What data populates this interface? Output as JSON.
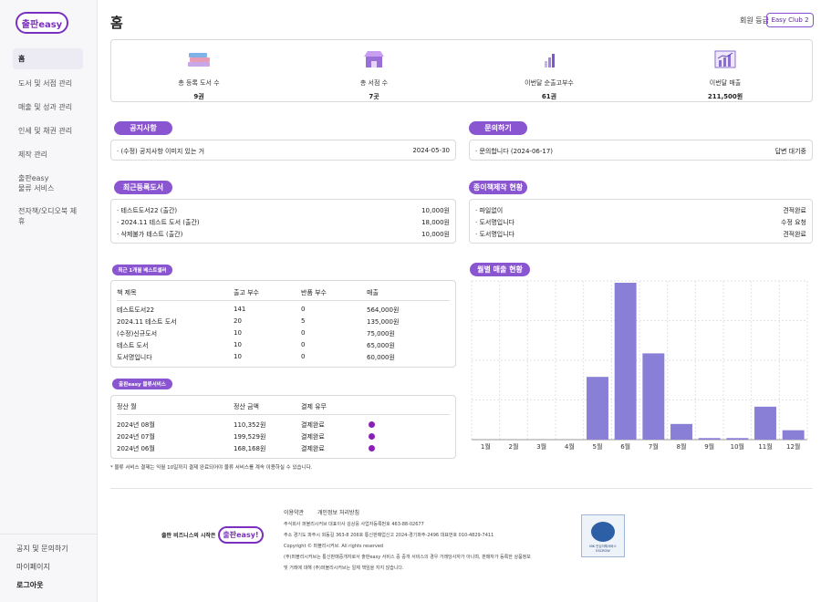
{
  "sidebar": {
    "logo_text": "출판easy",
    "items": [
      {
        "label": "홈"
      },
      {
        "label": "도서 및 서점 관리"
      },
      {
        "label": "매출 및 성과 관리"
      },
      {
        "label": "인세 및 채권 관리"
      },
      {
        "label": "제작 관리"
      },
      {
        "label": "출판easy\n물류 서비스"
      },
      {
        "label": "전자책/오디오북 제휴"
      }
    ],
    "bottom": [
      {
        "label": "공지 및 문의하기"
      },
      {
        "label": "마이페이지"
      },
      {
        "label": "로그아웃"
      }
    ]
  },
  "header": {
    "title": "홈",
    "grade_label": "회원 등급",
    "grade_value": "Easy Club 2"
  },
  "stats": [
    {
      "label": "총 등록 도서 수",
      "value": "9권",
      "icon": "books-icon"
    },
    {
      "label": "총 서점 수",
      "value": "7곳",
      "icon": "store-icon"
    },
    {
      "label": "이번달 순출고부수",
      "value": "61권",
      "icon": "bar-chart-icon"
    },
    {
      "label": "이번달 매출",
      "value": "211,500원",
      "icon": "sales-chart-icon"
    }
  ],
  "notice": {
    "title": "공지사항",
    "items": [
      {
        "text": "· (수정) 공지사항 이미지 있는 거",
        "date": "2024-05-30"
      }
    ]
  },
  "inquiry": {
    "title": "문의하기",
    "items": [
      {
        "text": "· 문의합니다 (2024-06-17)",
        "status": "답변 대기중"
      }
    ]
  },
  "recent_books": {
    "title": "최근등록도서",
    "items": [
      {
        "name": "· 테스트도서22 (출간)",
        "price": "10,000원"
      },
      {
        "name": "· 2024.11 테스트 도서 (출간)",
        "price": "18,000원"
      },
      {
        "name": "· 삭제불가 테스트 (출간)",
        "price": "10,000원"
      }
    ]
  },
  "paper_books": {
    "title": "종이책제작 현황",
    "items": [
      {
        "name": "· 파일없이",
        "status": "견적완료"
      },
      {
        "name": "· 도서명입니다",
        "status": "수정 요청"
      },
      {
        "name": "· 도서명입니다",
        "status": "견적완료"
      }
    ]
  },
  "bestseller": {
    "title": "최근 1개월 베스트셀러",
    "headers": [
      "책 제목",
      "출고 부수",
      "반품 부수",
      "매출"
    ],
    "rows": [
      [
        "테스트도서22",
        "141",
        "0",
        "564,000원"
      ],
      [
        "2024.11 테스트 도서",
        "20",
        "5",
        "135,000원"
      ],
      [
        "(수정)신규도서",
        "10",
        "0",
        "75,000원"
      ],
      [
        "테스트 도서",
        "10",
        "0",
        "65,000원"
      ],
      [
        "도서명입니다",
        "10",
        "0",
        "60,000원"
      ]
    ]
  },
  "logistics": {
    "title": "출판easy 물류서비스",
    "headers": [
      "정산 월",
      "정산 금액",
      "결제 유무"
    ],
    "rows": [
      [
        "2024년 08월",
        "110,352원",
        "결제완료"
      ],
      [
        "2024년 07월",
        "199,529원",
        "결제완료"
      ],
      [
        "2024년 06월",
        "168,168원",
        "결제완료"
      ]
    ],
    "note": "* 물류 서비스 결제는 익월 10일까지 결제 완료되어야 물류 서비스를 계속 이용하실 수 있습니다.",
    "dot_color": "#8a1fb8"
  },
  "chart_data": {
    "type": "bar",
    "title": "월별 매출 현황",
    "categories": [
      "1월",
      "2월",
      "3월",
      "4월",
      "5월",
      "6월",
      "7월",
      "8월",
      "9월",
      "10월",
      "11월",
      "12월"
    ],
    "values": [
      0,
      0,
      0,
      0,
      0.4,
      1.0,
      0.55,
      0.1,
      0.01,
      0.01,
      0.21,
      0.06
    ],
    "grid": true,
    "bar_color": "#8a7fd6"
  },
  "footer": {
    "links": [
      "이용약관",
      "개인정보 처리방침"
    ],
    "slogan": "출판 비즈니스의 시작은",
    "logo_text": "출판easy!",
    "lines": [
      "주식회사 퍼블리시커브 대표이사 김상웅 사업자등록번호 463-88-02677",
      "주소 경기도 파주시 회동길 363-8 206호 통신판매업신고 2024-경기파주-2496 대표번호 010-4829-7411",
      "Copyright © 퍼블리시커브. All rights reserved",
      "(주)퍼블리시커브는 통신판매중개자로서 출판easy 서비스 중 중개 서비스의 경우 거래당사자가 아니며, 판매자가 등록한 상품정보",
      "및 거래에 대해 (주)퍼블리시커브는 일체 책임을 지지 않습니다."
    ],
    "escrow_text": "IBK 안심이체서비스 ESCROW"
  }
}
